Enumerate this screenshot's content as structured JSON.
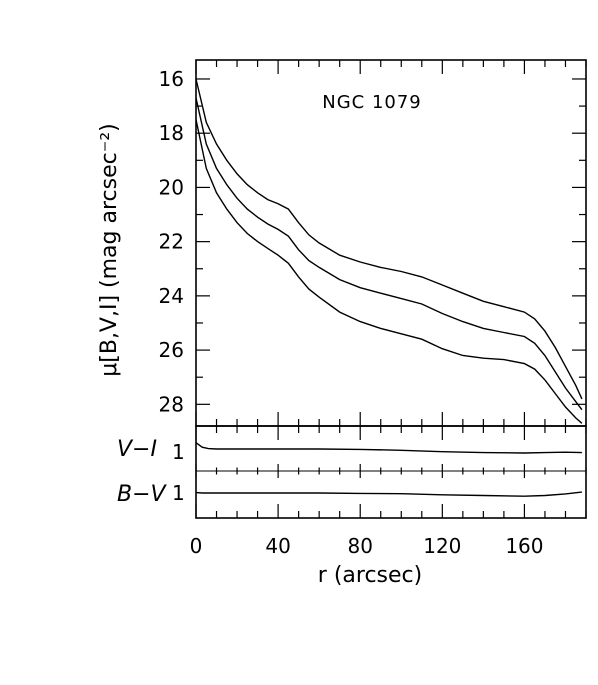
{
  "chart_data": [
    {
      "type": "line",
      "panel": "surface-brightness",
      "title": "NGC 1079",
      "xlabel": "",
      "ylabel": "μ[B,V,I] (mag arcsec⁻²)",
      "xlim": [
        0,
        190
      ],
      "ylim": [
        28.8,
        15.3
      ],
      "y_inverted": true,
      "y_ticks": [
        "16",
        "18",
        "20",
        "22",
        "24",
        "26",
        "28"
      ],
      "series": [
        {
          "x": [
            0,
            5,
            10,
            15,
            20,
            25,
            30,
            35,
            40,
            45,
            50,
            55,
            60,
            70,
            80,
            90,
            100,
            110,
            120,
            130,
            140,
            150,
            160,
            165,
            170,
            175,
            180,
            185,
            188
          ],
          "values": [
            16.0,
            17.6,
            18.4,
            19.0,
            19.5,
            19.9,
            20.2,
            20.45,
            20.6,
            20.8,
            21.3,
            21.75,
            22.05,
            22.5,
            22.75,
            22.95,
            23.1,
            23.3,
            23.6,
            23.9,
            24.2,
            24.4,
            24.6,
            24.85,
            25.3,
            25.9,
            26.6,
            27.3,
            27.8
          ]
        },
        {
          "x": [
            0,
            5,
            10,
            15,
            20,
            25,
            30,
            35,
            40,
            45,
            50,
            55,
            60,
            70,
            80,
            90,
            100,
            110,
            120,
            130,
            140,
            150,
            160,
            165,
            170,
            175,
            180,
            185,
            188
          ],
          "values": [
            16.7,
            18.4,
            19.3,
            19.9,
            20.4,
            20.8,
            21.1,
            21.35,
            21.55,
            21.8,
            22.3,
            22.7,
            22.95,
            23.4,
            23.7,
            23.9,
            24.1,
            24.3,
            24.65,
            24.95,
            25.2,
            25.35,
            25.5,
            25.75,
            26.2,
            26.8,
            27.4,
            27.9,
            28.2
          ]
        },
        {
          "x": [
            0,
            5,
            10,
            15,
            20,
            25,
            30,
            35,
            40,
            45,
            50,
            55,
            60,
            70,
            80,
            90,
            100,
            110,
            120,
            130,
            140,
            150,
            160,
            165,
            170,
            175,
            180,
            185,
            188
          ],
          "values": [
            17.5,
            19.3,
            20.2,
            20.8,
            21.3,
            21.7,
            22.0,
            22.25,
            22.5,
            22.8,
            23.3,
            23.75,
            24.05,
            24.6,
            24.95,
            25.2,
            25.4,
            25.6,
            25.95,
            26.2,
            26.3,
            26.35,
            26.5,
            26.7,
            27.1,
            27.6,
            28.1,
            28.5,
            28.7
          ]
        }
      ]
    },
    {
      "type": "line",
      "panel": "colors",
      "xlabel": "r (arcsec)",
      "ylabel": "",
      "xlim": [
        0,
        190
      ],
      "x_ticks": [
        "0",
        "40",
        "80",
        "120",
        "160"
      ],
      "row_labels": [
        {
          "name": "V−I",
          "tick": "1"
        },
        {
          "name": "B−V",
          "tick": "1"
        }
      ],
      "series": [
        {
          "x": [
            0,
            3,
            6,
            10,
            20,
            40,
            60,
            80,
            100,
            120,
            140,
            160,
            170,
            180,
            188
          ],
          "values": [
            1.35,
            1.1,
            1.02,
            1.0,
            1.0,
            1.0,
            1.0,
            0.98,
            0.93,
            0.85,
            0.8,
            0.78,
            0.8,
            0.82,
            0.8
          ]
        },
        {
          "x": [
            0,
            3,
            6,
            10,
            20,
            40,
            60,
            80,
            100,
            120,
            140,
            160,
            170,
            180,
            188
          ],
          "values": [
            1.02,
            1.0,
            1.0,
            1.0,
            1.0,
            1.0,
            1.0,
            0.98,
            0.96,
            0.9,
            0.86,
            0.82,
            0.86,
            0.95,
            1.05
          ]
        }
      ]
    }
  ]
}
